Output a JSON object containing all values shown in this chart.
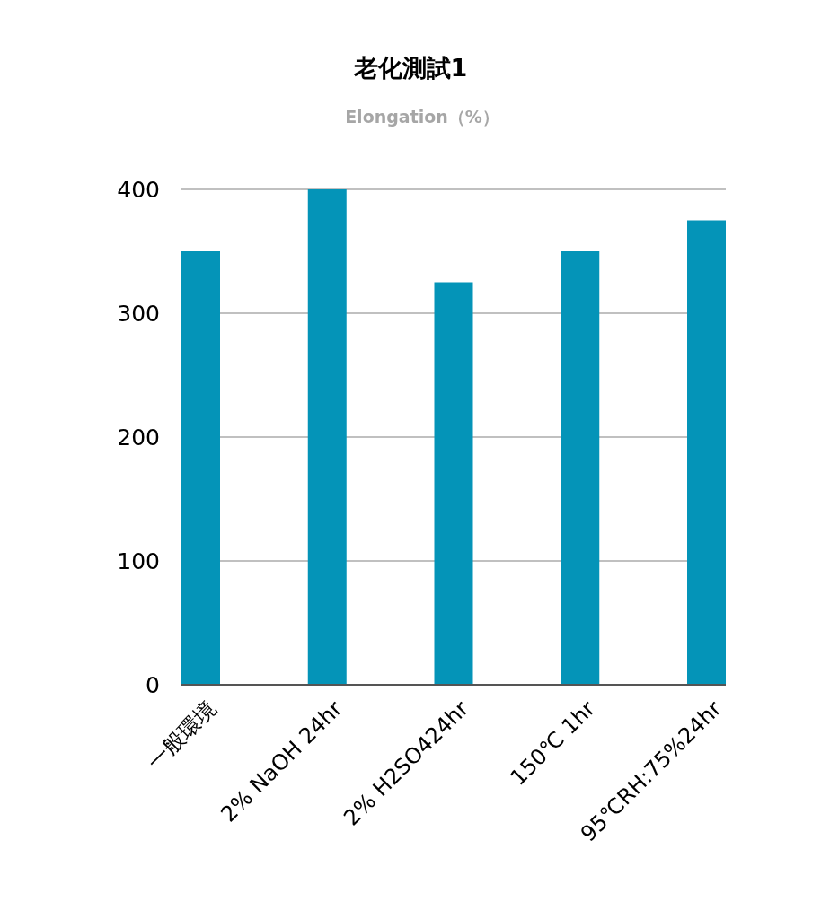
{
  "chart_data": {
    "type": "bar",
    "title": "老化測試1",
    "subtitle": "Elongation（%）",
    "categories": [
      "一般環境",
      "2% NaOH 24hr",
      "2% H2SO424hr",
      "150℃ 1hr",
      "95℃RH:75%24hr"
    ],
    "values": [
      350,
      400,
      325,
      350,
      375
    ],
    "color": "#0494b8",
    "ylim": [
      0,
      400
    ],
    "yticks": [
      0,
      100,
      200,
      300,
      400
    ],
    "grid": "y"
  }
}
